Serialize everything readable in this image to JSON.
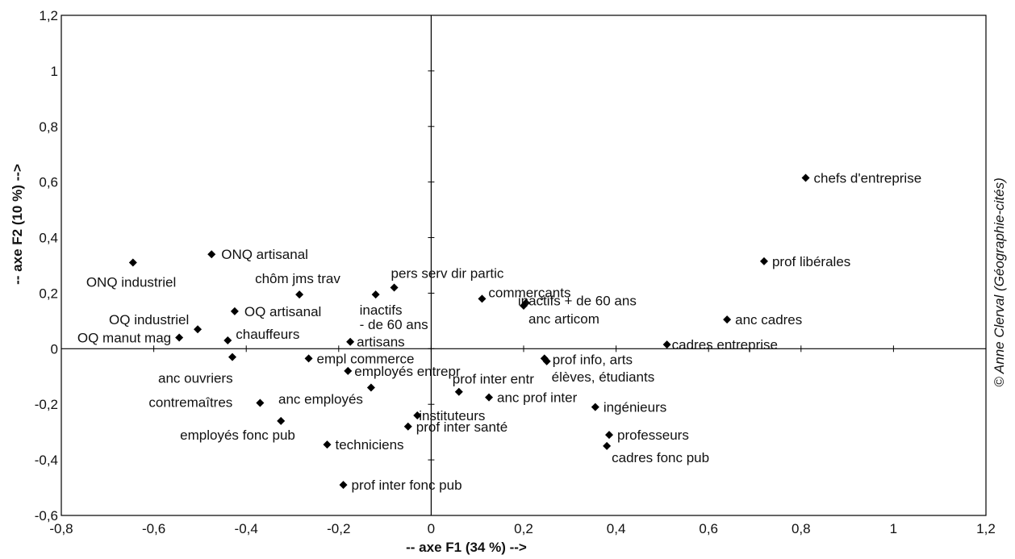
{
  "chart_data": {
    "type": "scatter",
    "xlabel": "-- axe F1 (34 %) -->",
    "ylabel": "-- axe F2 (10 %) -->",
    "xlim": [
      -0.8,
      1.2
    ],
    "ylim": [
      -0.6,
      1.2
    ],
    "x_ticks": [
      "-0,8",
      "-0,6",
      "-0,4",
      "-0,2",
      "0",
      "0,2",
      "0,4",
      "0,6",
      "0,8",
      "1",
      "1,2"
    ],
    "y_ticks": [
      "1,2",
      "1",
      "0,8",
      "0,6",
      "0,4",
      "0,2",
      "0",
      "-0,2",
      "-0,4",
      "-0,6"
    ],
    "credit": "© Anne Clerval (Géographie-cités)",
    "points": [
      {
        "label": "chefs d'entreprise",
        "x": 0.81,
        "y": 0.615
      },
      {
        "label": "prof libérales",
        "x": 0.72,
        "y": 0.315
      },
      {
        "label": "anc cadres",
        "x": 0.64,
        "y": 0.105
      },
      {
        "label": "cadres entreprise",
        "x": 0.51,
        "y": 0.015
      },
      {
        "label": "prof info, arts",
        "x": 0.245,
        "y": -0.035
      },
      {
        "label": "élèves, étudiants",
        "x": 0.25,
        "y": -0.045
      },
      {
        "label": "ingénieurs",
        "x": 0.355,
        "y": -0.21
      },
      {
        "label": "professeurs",
        "x": 0.385,
        "y": -0.31
      },
      {
        "label": "cadres fonc pub",
        "x": 0.38,
        "y": -0.35
      },
      {
        "label": "commerçants",
        "x": 0.11,
        "y": 0.18
      },
      {
        "label": "inactifs + de 60 ans",
        "x": 0.205,
        "y": 0.165
      },
      {
        "label": "anc articom",
        "x": 0.2,
        "y": 0.155
      },
      {
        "label": "anc prof inter",
        "x": 0.125,
        "y": -0.175
      },
      {
        "label": "prof inter entr",
        "x": 0.06,
        "y": -0.155
      },
      {
        "label": "instituteurs",
        "x": -0.03,
        "y": -0.24
      },
      {
        "label": "prof inter santé",
        "x": -0.05,
        "y": -0.28
      },
      {
        "label": "prof inter fonc pub",
        "x": -0.19,
        "y": -0.49
      },
      {
        "label": "techniciens",
        "x": -0.225,
        "y": -0.345
      },
      {
        "label": "pers serv dir partic",
        "x": -0.08,
        "y": 0.22
      },
      {
        "label": "inactifs\n- de 60 ans",
        "x": -0.12,
        "y": 0.195
      },
      {
        "label": "artisans",
        "x": -0.175,
        "y": 0.025
      },
      {
        "label": "empl commerce",
        "x": -0.265,
        "y": -0.035
      },
      {
        "label": "employés entrepr",
        "x": -0.18,
        "y": -0.08
      },
      {
        "label": "anc employés",
        "x": -0.13,
        "y": -0.14
      },
      {
        "label": "employés fonc pub",
        "x": -0.325,
        "y": -0.26
      },
      {
        "label": "contremaîtres",
        "x": -0.37,
        "y": -0.195
      },
      {
        "label": "chôm jms trav",
        "x": -0.285,
        "y": 0.195
      },
      {
        "label": "ONQ artisanal",
        "x": -0.475,
        "y": 0.34
      },
      {
        "label": "ONQ industriel",
        "x": -0.645,
        "y": 0.31
      },
      {
        "label": "OQ artisanal",
        "x": -0.425,
        "y": 0.135
      },
      {
        "label": "OQ industriel",
        "x": -0.505,
        "y": 0.07
      },
      {
        "label": "OQ manut mag",
        "x": -0.545,
        "y": 0.04
      },
      {
        "label": "chauffeurs",
        "x": -0.44,
        "y": 0.03
      },
      {
        "label": "anc ouvriers",
        "x": -0.43,
        "y": -0.03
      }
    ]
  }
}
